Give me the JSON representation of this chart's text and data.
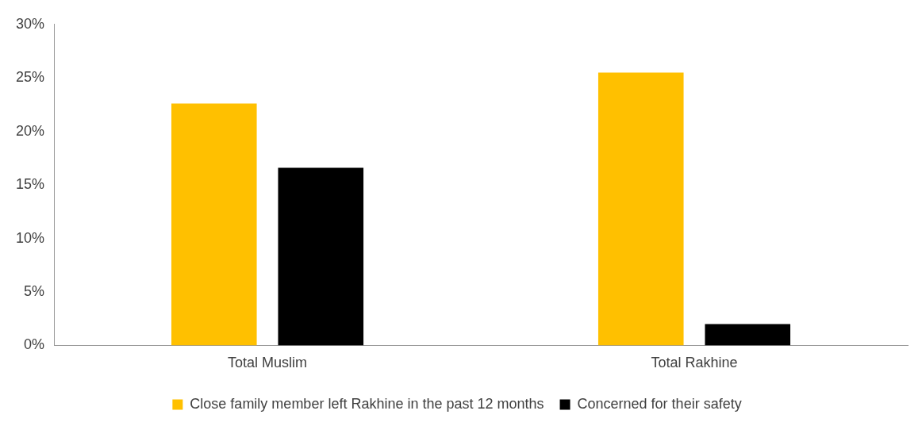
{
  "chart_data": {
    "type": "bar",
    "categories": [
      "Total Muslim",
      "Total Rakhine"
    ],
    "series": [
      {
        "name": "Close family member left Rakhine in the past 12 months",
        "color": "#ffc000",
        "values": [
          22.6,
          25.5
        ]
      },
      {
        "name": "Concerned for their safety",
        "color": "#000000",
        "values": [
          16.6,
          2.0
        ]
      }
    ],
    "ylim": [
      0,
      30
    ],
    "yticks": [
      {
        "value": 0,
        "label": "0%"
      },
      {
        "value": 5,
        "label": "5%"
      },
      {
        "value": 10,
        "label": "10%"
      },
      {
        "value": 15,
        "label": "15%"
      },
      {
        "value": 20,
        "label": "20%"
      },
      {
        "value": 25,
        "label": "25%"
      },
      {
        "value": 30,
        "label": "30%"
      }
    ],
    "grid": false,
    "legend": "bottom"
  }
}
